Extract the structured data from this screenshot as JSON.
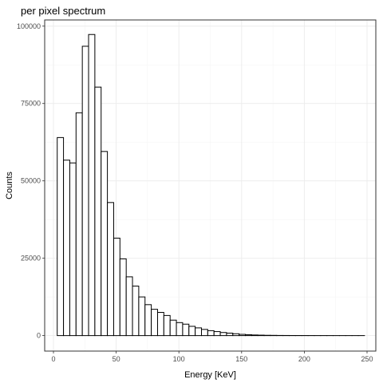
{
  "chart_data": {
    "type": "bar",
    "title": "per pixel spectrum",
    "xlabel": "Energy [KeV]",
    "ylabel": "Counts",
    "xlim": [
      -7,
      257
    ],
    "ylim": [
      -5000,
      102000
    ],
    "xticks": [
      0,
      50,
      100,
      150,
      200,
      250
    ],
    "yticks": [
      0,
      25000,
      50000,
      75000,
      100000
    ],
    "grid": true,
    "bin_width": 5,
    "bins_start": [
      3,
      8,
      13,
      18,
      23,
      28,
      33,
      38,
      43,
      48,
      53,
      58,
      63,
      68,
      73,
      78,
      83,
      88,
      93,
      98,
      103,
      108,
      113,
      118,
      123,
      128,
      133,
      138,
      143,
      148,
      153,
      158,
      163,
      168,
      173,
      178,
      183,
      188,
      193,
      198,
      203,
      208,
      213,
      218,
      223,
      228,
      233,
      238,
      243
    ],
    "values": [
      64000,
      56700,
      55800,
      72000,
      93500,
      97300,
      80300,
      59500,
      43000,
      31500,
      24800,
      19000,
      16000,
      12500,
      10000,
      8500,
      7500,
      6500,
      5000,
      4200,
      3700,
      3000,
      2500,
      2000,
      1600,
      1300,
      1000,
      800,
      600,
      400,
      300,
      200,
      150,
      100,
      80,
      50,
      40,
      30,
      25,
      20,
      15,
      10,
      10,
      8,
      5,
      5,
      3,
      2,
      2
    ]
  }
}
